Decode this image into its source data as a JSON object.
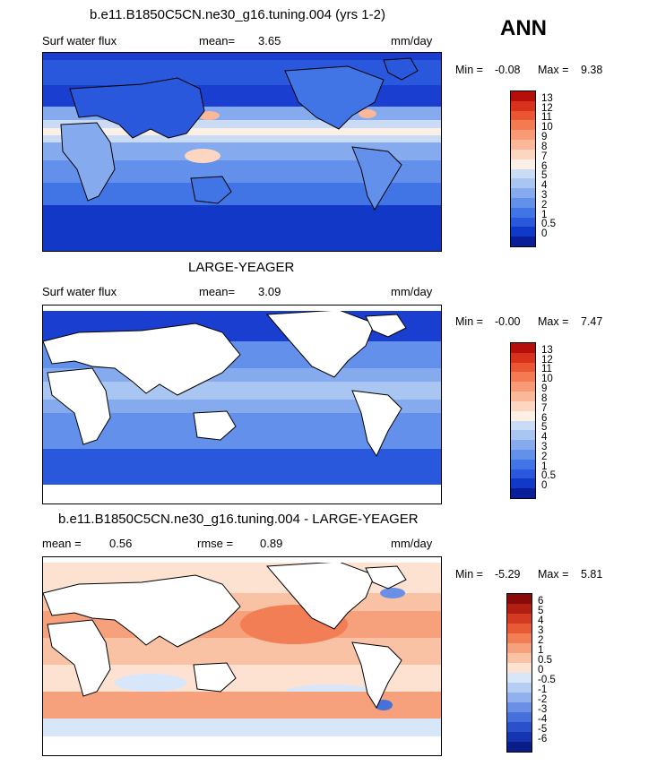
{
  "season": "ANN",
  "panels": [
    {
      "title": "b.e11.B1850C5CN.ne30_g16.tuning.004 (yrs 1-2)",
      "variable": "Surf water flux",
      "stat1_label": "mean=",
      "stat1_value": "3.65",
      "units": "mm/day",
      "min_label": "Min =",
      "min_value": "-0.08",
      "max_label": "Max =",
      "max_value": "9.38",
      "colorbar_labels": [
        "13",
        "12",
        "11",
        "10",
        "9",
        "8",
        "7",
        "6",
        "5",
        "4",
        "3",
        "2",
        "1",
        "0.5",
        "0"
      ],
      "colorbar_colors": [
        "#b40f0b",
        "#d8321c",
        "#ea5532",
        "#f47a52",
        "#f89a76",
        "#fab898",
        "#fcd6c0",
        "#fbefe6",
        "#cadcf5",
        "#a9c6f2",
        "#85aaed",
        "#6290ea",
        "#4175e6",
        "#2a58dc",
        "#1238c8",
        "#0a1e9a"
      ]
    },
    {
      "title": "LARGE-YEAGER",
      "variable": "Surf water flux",
      "stat1_label": "mean=",
      "stat1_value": "3.09",
      "units": "mm/day",
      "min_label": "Min =",
      "min_value": "-0.00",
      "max_label": "Max =",
      "max_value": "7.47",
      "colorbar_labels": [
        "13",
        "12",
        "11",
        "10",
        "9",
        "8",
        "7",
        "6",
        "5",
        "4",
        "3",
        "2",
        "1",
        "0.5",
        "0"
      ],
      "colorbar_colors": [
        "#b40f0b",
        "#d8321c",
        "#ea5532",
        "#f47a52",
        "#f89a76",
        "#fab898",
        "#fcd6c0",
        "#fbefe6",
        "#cadcf5",
        "#a9c6f2",
        "#85aaed",
        "#6290ea",
        "#4175e6",
        "#2a58dc",
        "#1238c8",
        "#0a1e9a"
      ]
    },
    {
      "title": "b.e11.B1850C5CN.ne30_g16.tuning.004 - LARGE-YEAGER",
      "stat1_label": "mean =",
      "stat1_value": "0.56",
      "stat2_label": "rmse =",
      "stat2_value": "0.89",
      "units": "mm/day",
      "min_label": "Min =",
      "min_value": "-5.29",
      "max_label": "Max =",
      "max_value": "5.81",
      "colorbar_labels": [
        "6",
        "5",
        "4",
        "3",
        "2",
        "1",
        "0.5",
        "0",
        "-0.5",
        "-1",
        "-2",
        "-3",
        "-4",
        "-5",
        "-6"
      ],
      "colorbar_colors": [
        "#8a0a0a",
        "#b21e14",
        "#d23a22",
        "#e85a36",
        "#f27e56",
        "#f7a07c",
        "#fac2a4",
        "#fde2d2",
        "#d8e6fa",
        "#b6cdf4",
        "#90b0ee",
        "#6a8fe6",
        "#4670dc",
        "#2a50cc",
        "#1634b0",
        "#0a1c88"
      ]
    }
  ]
}
